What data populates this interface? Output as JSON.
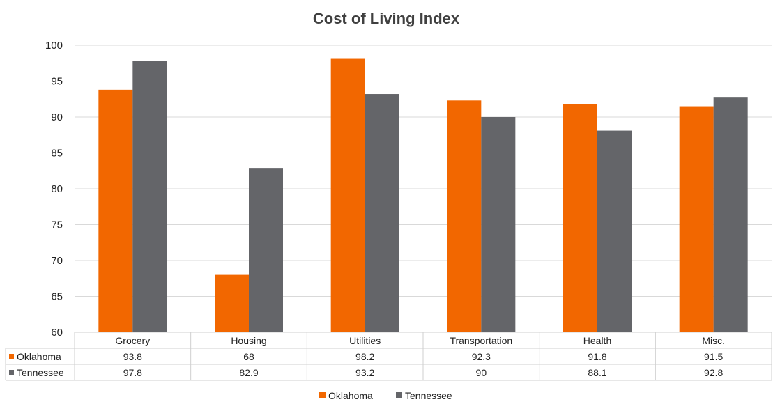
{
  "chart_data": {
    "type": "bar",
    "title": "Cost of Living Index",
    "xlabel": "",
    "ylabel": "",
    "categories": [
      "Grocery",
      "Housing",
      "Utilities",
      "Transportation",
      "Health",
      "Misc."
    ],
    "series": [
      {
        "name": "Oklahoma",
        "color": "#f26700",
        "values": [
          93.8,
          68,
          98.2,
          92.3,
          91.8,
          91.5
        ],
        "table_values": [
          "93.8",
          "68",
          "98.2",
          "92.3",
          "91.8",
          "91.5"
        ]
      },
      {
        "name": "Tennessee",
        "color": "#646569",
        "values": [
          97.8,
          82.9,
          93.2,
          90,
          88.1,
          92.8
        ],
        "table_values": [
          "97.8",
          "82.9",
          "93.2",
          "90",
          "88.1",
          "92.8"
        ]
      }
    ],
    "ylim": [
      60,
      100
    ],
    "yticks": [
      "60",
      "65",
      "70",
      "75",
      "80",
      "85",
      "90",
      "95",
      "100"
    ],
    "grid": true,
    "data_table": true,
    "legend_position": "bottom"
  }
}
